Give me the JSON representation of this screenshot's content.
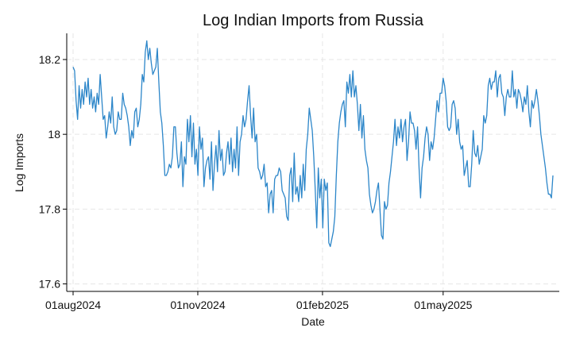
{
  "chart_data": {
    "type": "line",
    "title": "Log Indian Imports from Russia",
    "xlabel": "Date",
    "ylabel": "Log Imports",
    "x_start": "2024-08-01",
    "x_end": "2025-07-21",
    "ylim": [
      17.58,
      18.27
    ],
    "x_ticks": [
      {
        "date": "2024-08-01",
        "label": "01aug2024"
      },
      {
        "date": "2024-11-01",
        "label": "01nov2024"
      },
      {
        "date": "2025-02-01",
        "label": "01feb2025"
      },
      {
        "date": "2025-05-01",
        "label": "01may2025"
      }
    ],
    "y_ticks": [
      {
        "value": 17.6,
        "label": "17.6"
      },
      {
        "value": 17.8,
        "label": "17.8"
      },
      {
        "value": 18.0,
        "label": "18"
      },
      {
        "value": 18.2,
        "label": "18.2"
      }
    ],
    "grid": true,
    "series": [
      {
        "color": "#2c86c9",
        "values": [
          18.18,
          18.17,
          18.09,
          18.04,
          18.13,
          18.07,
          18.12,
          18.08,
          18.14,
          18.1,
          18.15,
          18.08,
          18.12,
          18.07,
          18.1,
          18.06,
          18.11,
          18.08,
          18.16,
          18.1,
          18.04,
          18.05,
          17.99,
          18.02,
          18.06,
          18.03,
          18.1,
          18.02,
          18.0,
          18.01,
          18.06,
          18.04,
          18.04,
          18.11,
          18.08,
          18.07,
          18.05,
          18.02,
          17.97,
          18.01,
          17.99,
          18.06,
          18.07,
          18.02,
          18.04,
          18.08,
          18.16,
          18.14,
          18.22,
          18.25,
          18.2,
          18.23,
          18.19,
          18.16,
          18.17,
          18.18,
          18.23,
          18.14,
          18.06,
          18.03,
          17.97,
          17.89,
          17.89,
          17.9,
          17.92,
          17.91,
          17.94,
          18.02,
          18.02,
          17.95,
          17.91,
          17.92,
          17.98,
          17.86,
          17.94,
          17.92,
          18.04,
          17.98,
          18.05,
          17.94,
          18.03,
          17.92,
          17.96,
          17.89,
          18.02,
          17.96,
          17.99,
          17.86,
          17.91,
          17.93,
          17.94,
          17.88,
          17.98,
          17.85,
          17.92,
          17.97,
          17.9,
          18.01,
          17.93,
          17.96,
          17.89,
          17.9,
          17.95,
          17.98,
          17.92,
          17.99,
          17.9,
          17.96,
          17.91,
          18.02,
          17.89,
          17.98,
          18.0,
          18.05,
          18.02,
          18.04,
          18.09,
          18.13,
          18.05,
          17.99,
          18.07,
          17.98,
          18.0,
          17.91,
          17.9,
          17.88,
          17.89,
          17.92,
          17.86,
          17.87,
          17.79,
          17.84,
          17.85,
          17.79,
          17.88,
          17.89,
          17.89,
          17.91,
          17.9,
          17.85,
          17.84,
          17.83,
          17.78,
          17.77,
          17.89,
          17.91,
          17.82,
          17.95,
          17.84,
          17.86,
          17.82,
          17.89,
          17.83,
          17.92,
          17.85,
          17.96,
          18.0,
          18.07,
          18.04,
          18.01,
          17.94,
          17.85,
          17.75,
          17.91,
          17.83,
          17.88,
          17.75,
          17.88,
          17.85,
          17.87,
          17.71,
          17.7,
          17.72,
          17.74,
          17.78,
          17.89,
          17.98,
          18.03,
          18.06,
          18.08,
          18.09,
          18.02,
          18.14,
          18.11,
          18.16,
          18.1,
          18.17,
          18.1,
          18.13,
          18.08,
          18.01,
          18.08,
          17.99,
          18.05,
          17.96,
          17.93,
          17.91,
          17.84,
          17.81,
          17.79,
          17.8,
          17.82,
          17.85,
          17.87,
          17.8,
          17.73,
          17.72,
          17.82,
          17.8,
          17.81,
          17.87,
          17.9,
          17.94,
          17.98,
          18.04,
          17.97,
          18.02,
          17.99,
          18.04,
          17.98,
          18.02,
          18.04,
          17.93,
          17.98,
          18.06,
          18.03,
          18.03,
          18.01,
          17.96,
          18.02,
          17.91,
          17.83,
          17.91,
          17.94,
          17.99,
          18.02,
          18.0,
          17.93,
          17.98,
          17.96,
          17.99,
          18.04,
          18.09,
          18.06,
          18.11,
          18.11,
          18.15,
          18.13,
          18.09,
          18.02,
          18.01,
          18.02,
          18.08,
          18.09,
          18.07,
          18.0,
          18.04,
          17.98,
          17.96,
          17.97,
          17.89,
          17.91,
          17.93,
          17.86,
          17.86,
          17.92,
          18.01,
          17.95,
          17.94,
          17.97,
          17.92,
          17.94,
          17.96,
          18.05,
          18.03,
          18.05,
          18.13,
          18.15,
          18.12,
          18.14,
          18.14,
          18.17,
          18.1,
          18.15,
          18.16,
          18.11,
          18.1,
          18.05,
          18.1,
          18.12,
          18.1,
          18.1,
          18.17,
          18.1,
          18.12,
          18.07,
          18.12,
          18.11,
          18.09,
          18.06,
          18.1,
          18.08,
          18.13,
          18.06,
          18.02,
          18.09,
          18.07,
          18.09,
          18.12,
          18.09,
          18.05,
          18.0,
          17.97,
          17.94,
          17.91,
          17.87,
          17.84,
          17.84,
          17.83,
          17.89
        ]
      }
    ]
  }
}
